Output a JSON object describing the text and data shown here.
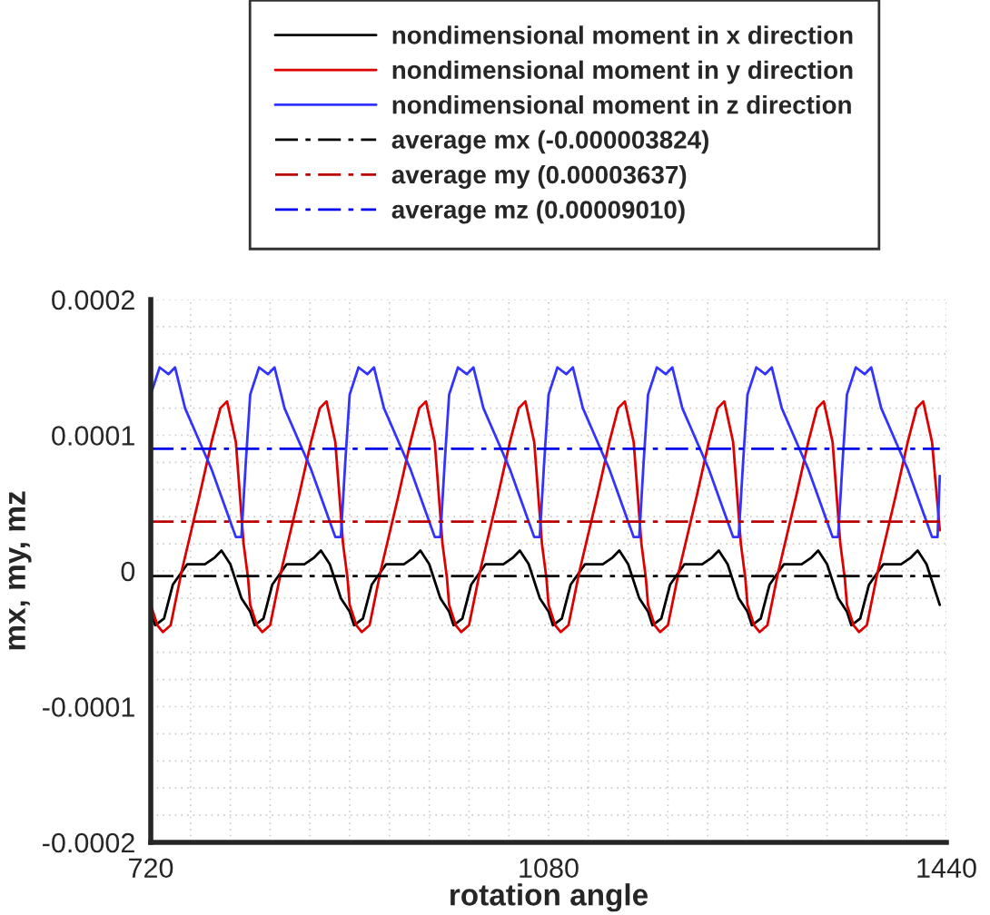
{
  "chart_data": {
    "type": "line",
    "xlabel": "rotation angle",
    "ylabel": "mx, my, mz",
    "xlim": [
      720,
      1440
    ],
    "ylim": [
      -0.0002,
      0.0002
    ],
    "xticks": [
      720,
      {
        "value": 756,
        "label": null
      },
      {
        "value": 792,
        "label": null
      },
      {
        "value": 828,
        "label": null
      },
      {
        "value": 864,
        "label": null
      },
      {
        "value": 900,
        "label": null
      },
      {
        "value": 936,
        "label": null
      },
      {
        "value": 972,
        "label": null
      },
      {
        "value": 1008,
        "label": null
      },
      {
        "value": 1044,
        "label": null
      },
      1080,
      {
        "value": 1116,
        "label": null
      },
      {
        "value": 1152,
        "label": null
      },
      {
        "value": 1188,
        "label": null
      },
      {
        "value": 1224,
        "label": null
      },
      {
        "value": 1260,
        "label": null
      },
      {
        "value": 1296,
        "label": null
      },
      {
        "value": 1332,
        "label": null
      },
      {
        "value": 1368,
        "label": null
      },
      {
        "value": 1404,
        "label": null
      },
      1440
    ],
    "yticks": [
      {
        "value": -0.0002,
        "label": "-0.0002"
      },
      {
        "value": -0.00018,
        "label": null
      },
      {
        "value": -0.00016,
        "label": null
      },
      {
        "value": -0.00014,
        "label": null
      },
      {
        "value": -0.00012,
        "label": null
      },
      {
        "value": -0.0001,
        "label": "-0.0001"
      },
      {
        "value": -8e-05,
        "label": null
      },
      {
        "value": -6e-05,
        "label": null
      },
      {
        "value": -4e-05,
        "label": null
      },
      {
        "value": -2e-05,
        "label": null
      },
      {
        "value": 0,
        "label": "0"
      },
      {
        "value": 2e-05,
        "label": null
      },
      {
        "value": 4e-05,
        "label": null
      },
      {
        "value": 6e-05,
        "label": null
      },
      {
        "value": 8e-05,
        "label": null
      },
      {
        "value": 0.0001,
        "label": "0.0001"
      },
      {
        "value": 0.00012,
        "label": null
      },
      {
        "value": 0.00014,
        "label": null
      },
      {
        "value": 0.00016,
        "label": null
      },
      {
        "value": 0.00018,
        "label": null
      },
      {
        "value": 0.0002,
        "label": "0.0002"
      }
    ],
    "grid": true,
    "legend": "top",
    "line_style": "solid",
    "series": [
      {
        "name": "nondimensional moment in x direction",
        "color": "#000000",
        "x": [
          720,
          724,
          732,
          740,
          753,
          769,
          778,
          784,
          792,
          802,
          810,
          814,
          822,
          830,
          843,
          859,
          868,
          874,
          882,
          892,
          900,
          904,
          912,
          920,
          933,
          949,
          958,
          964,
          972,
          982,
          990,
          994,
          1002,
          1010,
          1023,
          1039,
          1048,
          1054,
          1062,
          1072,
          1080,
          1084,
          1092,
          1100,
          1113,
          1129,
          1138,
          1144,
          1152,
          1162,
          1170,
          1174,
          1182,
          1190,
          1203,
          1219,
          1228,
          1234,
          1242,
          1252,
          1260,
          1264,
          1272,
          1280,
          1293,
          1309,
          1318,
          1324,
          1332,
          1342,
          1350,
          1354,
          1362,
          1370,
          1383,
          1399,
          1408,
          1414,
          1422,
          1432,
          1434
        ],
        "values": [
          -3e-05,
          -4e-05,
          -3.5e-05,
          -1e-05,
          5e-06,
          5e-06,
          1e-05,
          1.5e-05,
          5e-06,
          -2e-05,
          -3e-05,
          -4e-05,
          -3.5e-05,
          -1e-05,
          5e-06,
          5e-06,
          1e-05,
          1.5e-05,
          5e-06,
          -2e-05,
          -3e-05,
          -4e-05,
          -3.5e-05,
          -1e-05,
          5e-06,
          5e-06,
          1e-05,
          1.5e-05,
          5e-06,
          -2e-05,
          -3e-05,
          -4e-05,
          -3.5e-05,
          -1e-05,
          5e-06,
          5e-06,
          1e-05,
          1.5e-05,
          5e-06,
          -2e-05,
          -3e-05,
          -4e-05,
          -3.5e-05,
          -1e-05,
          5e-06,
          5e-06,
          1e-05,
          1.5e-05,
          5e-06,
          -2e-05,
          -3e-05,
          -4e-05,
          -3.5e-05,
          -1e-05,
          5e-06,
          5e-06,
          1e-05,
          1.5e-05,
          5e-06,
          -2e-05,
          -3e-05,
          -4e-05,
          -3.5e-05,
          -1e-05,
          5e-06,
          5e-06,
          1e-05,
          1.5e-05,
          5e-06,
          -2e-05,
          -3e-05,
          -4e-05,
          -3.5e-05,
          -1e-05,
          5e-06,
          5e-06,
          1e-05,
          1.5e-05,
          5e-06,
          -2e-05,
          -2.5e-05
        ]
      },
      {
        "name": "nondimensional moment in y direction",
        "color": "#dd0000",
        "x": [
          720,
          726,
          731,
          738,
          748,
          764,
          775,
          783,
          789,
          797,
          804,
          808,
          810,
          816,
          821,
          828,
          838,
          854,
          865,
          873,
          879,
          887,
          894,
          898,
          900,
          906,
          911,
          918,
          928,
          944,
          955,
          963,
          969,
          977,
          984,
          988,
          990,
          996,
          1001,
          1008,
          1018,
          1034,
          1045,
          1053,
          1059,
          1067,
          1074,
          1078,
          1080,
          1086,
          1091,
          1098,
          1108,
          1124,
          1135,
          1143,
          1149,
          1157,
          1164,
          1168,
          1170,
          1176,
          1181,
          1188,
          1198,
          1214,
          1225,
          1233,
          1239,
          1247,
          1254,
          1258,
          1260,
          1266,
          1271,
          1278,
          1288,
          1304,
          1315,
          1323,
          1329,
          1337,
          1344,
          1348,
          1350,
          1356,
          1361,
          1368,
          1378,
          1394,
          1405,
          1413,
          1419,
          1427,
          1434
        ],
        "values": [
          -2.5e-05,
          -4e-05,
          -4.5e-05,
          -4e-05,
          0,
          5.5e-05,
          9.5e-05,
          0.00012,
          0.000125,
          9.5e-05,
          2e-05,
          -5e-06,
          -2.5e-05,
          -4e-05,
          -4.5e-05,
          -4e-05,
          0,
          5.5e-05,
          9.5e-05,
          0.00012,
          0.000125,
          9.5e-05,
          2e-05,
          -5e-06,
          -2.5e-05,
          -4e-05,
          -4.5e-05,
          -4e-05,
          0,
          5.5e-05,
          9.5e-05,
          0.00012,
          0.000125,
          9.5e-05,
          2e-05,
          -5e-06,
          -2.5e-05,
          -4e-05,
          -4.5e-05,
          -4e-05,
          0,
          5.5e-05,
          9.5e-05,
          0.00012,
          0.000125,
          9.5e-05,
          2e-05,
          -5e-06,
          -2.5e-05,
          -4e-05,
          -4.5e-05,
          -4e-05,
          0,
          5.5e-05,
          9.5e-05,
          0.00012,
          0.000125,
          9.5e-05,
          2e-05,
          -5e-06,
          -2.5e-05,
          -4e-05,
          -4.5e-05,
          -4e-05,
          0,
          5.5e-05,
          9.5e-05,
          0.00012,
          0.000125,
          9.5e-05,
          2e-05,
          -5e-06,
          -2.5e-05,
          -4e-05,
          -4.5e-05,
          -4e-05,
          0,
          5.5e-05,
          9.5e-05,
          0.00012,
          0.000125,
          9.5e-05,
          2e-05,
          -5e-06,
          -2.5e-05,
          -4e-05,
          -4.5e-05,
          -4e-05,
          0,
          5.5e-05,
          9.5e-05,
          0.00012,
          0.000125,
          9.5e-05,
          3e-05
        ]
      },
      {
        "name": "nondimensional moment in z direction",
        "color": "#3333ff",
        "x": [
          720,
          728,
          736,
          742,
          751,
          759,
          767,
          775,
          786,
          797,
          802,
          806,
          810,
          818,
          826,
          832,
          841,
          849,
          857,
          865,
          876,
          887,
          892,
          896,
          900,
          908,
          916,
          922,
          931,
          939,
          947,
          955,
          966,
          977,
          982,
          986,
          990,
          998,
          1006,
          1012,
          1021,
          1029,
          1037,
          1045,
          1056,
          1067,
          1072,
          1076,
          1080,
          1088,
          1096,
          1102,
          1111,
          1119,
          1127,
          1135,
          1146,
          1157,
          1162,
          1166,
          1170,
          1178,
          1186,
          1192,
          1201,
          1209,
          1217,
          1225,
          1236,
          1247,
          1252,
          1256,
          1260,
          1268,
          1276,
          1282,
          1291,
          1299,
          1307,
          1315,
          1326,
          1337,
          1342,
          1346,
          1350,
          1358,
          1366,
          1372,
          1381,
          1389,
          1397,
          1405,
          1416,
          1427,
          1432,
          1434
        ],
        "values": [
          0.00013,
          0.00015,
          0.000145,
          0.00015,
          0.00012,
          0.000105,
          9e-05,
          7.5e-05,
          5e-05,
          2.5e-05,
          2.5e-05,
          8e-05,
          0.00013,
          0.00015,
          0.000145,
          0.00015,
          0.00012,
          0.000105,
          9e-05,
          7.5e-05,
          5e-05,
          2.5e-05,
          2.5e-05,
          8e-05,
          0.00013,
          0.00015,
          0.000145,
          0.00015,
          0.00012,
          0.000105,
          9e-05,
          7.5e-05,
          5e-05,
          2.5e-05,
          2.5e-05,
          8e-05,
          0.00013,
          0.00015,
          0.000145,
          0.00015,
          0.00012,
          0.000105,
          9e-05,
          7.5e-05,
          5e-05,
          2.5e-05,
          2.5e-05,
          8e-05,
          0.00013,
          0.00015,
          0.000145,
          0.00015,
          0.00012,
          0.000105,
          9e-05,
          7.5e-05,
          5e-05,
          2.5e-05,
          2.5e-05,
          8e-05,
          0.00013,
          0.00015,
          0.000145,
          0.00015,
          0.00012,
          0.000105,
          9e-05,
          7.5e-05,
          5e-05,
          2.5e-05,
          2.5e-05,
          8e-05,
          0.00013,
          0.00015,
          0.000145,
          0.00015,
          0.00012,
          0.000105,
          9e-05,
          7.5e-05,
          5e-05,
          2.5e-05,
          2.5e-05,
          8e-05,
          0.00013,
          0.00015,
          0.000145,
          0.00015,
          0.00012,
          0.000105,
          9e-05,
          7.5e-05,
          5e-05,
          2.5e-05,
          2.5e-05,
          7e-05
        ]
      },
      {
        "name": "average mx (-0.000003824)",
        "color": "#000000",
        "line_style": "dashdot",
        "x": [
          720,
          1434
        ],
        "values": [
          -3.824e-06,
          -3.824e-06
        ]
      },
      {
        "name": "average my (0.00003637)",
        "color": "#bb0000",
        "line_style": "dashdot",
        "x": [
          720,
          1434
        ],
        "values": [
          3.637e-05,
          3.637e-05
        ]
      },
      {
        "name": "average mz (0.00009010)",
        "color": "#0000ee",
        "line_style": "dashdot",
        "x": [
          720,
          1434
        ],
        "values": [
          9.01e-05,
          9.01e-05
        ]
      }
    ]
  }
}
